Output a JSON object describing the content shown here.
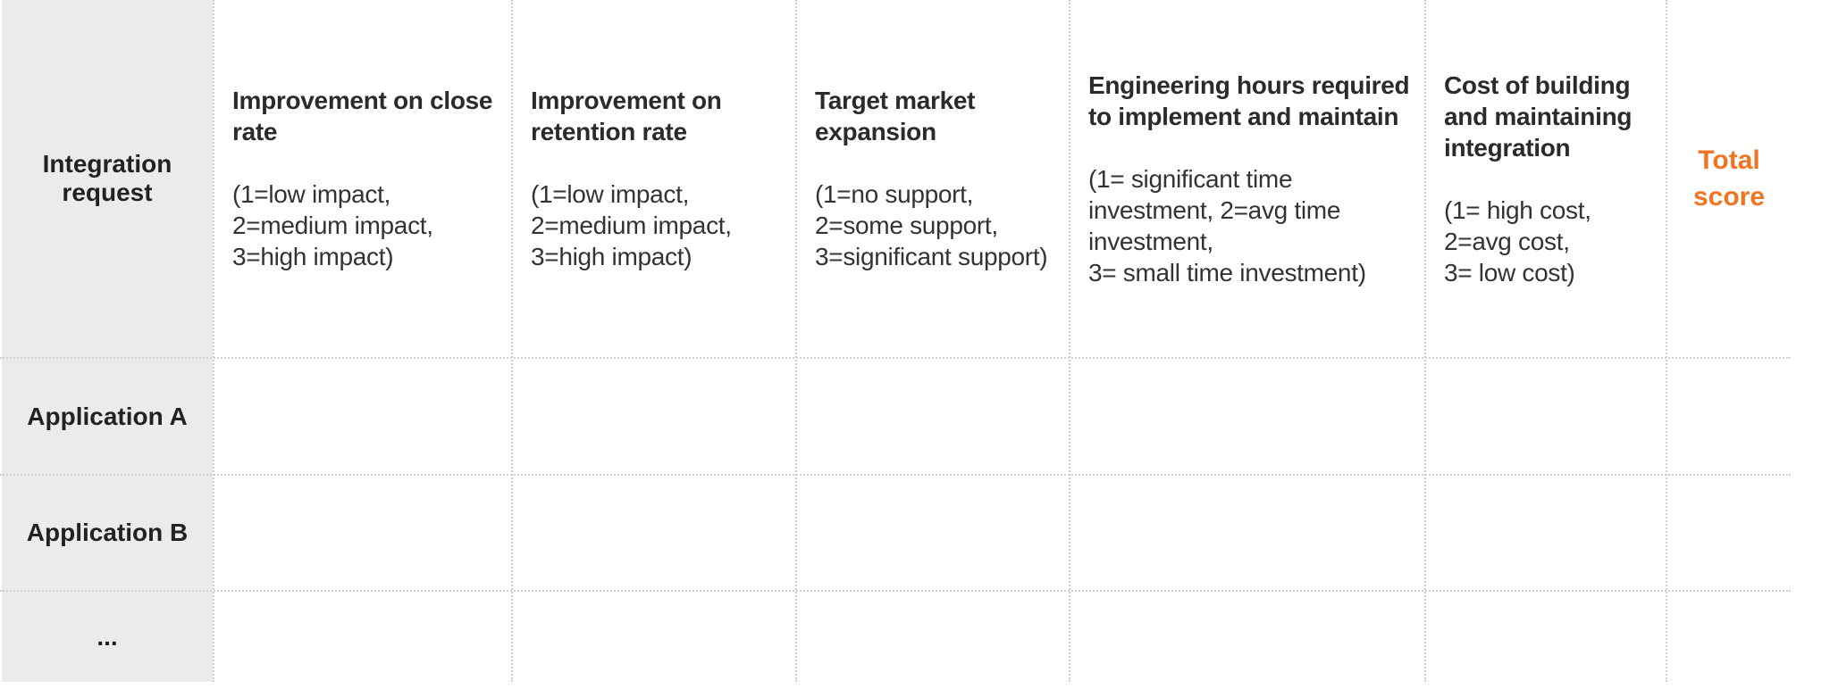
{
  "table": {
    "corner_label": "Integration request",
    "columns": [
      {
        "title": "Improvement on close rate",
        "scale": "(1=low impact,\n2=medium impact,\n3=high impact)"
      },
      {
        "title": "Improvement on retention rate",
        "scale": "(1=low impact,\n2=medium impact,\n3=high impact)"
      },
      {
        "title": "Target market expansion",
        "scale": "(1=no support,\n2=some support,\n3=significant support)"
      },
      {
        "title": "Engineering hours required to implement and maintain",
        "scale": "(1= significant time investment, 2=avg time investment,\n3= small time investment)"
      },
      {
        "title": "Cost of building and maintaining integration",
        "scale": "(1= high cost,\n2=avg cost,\n3= low cost)"
      }
    ],
    "total_label": "Total score",
    "rows": [
      {
        "label": "Application A"
      },
      {
        "label": "Application B"
      },
      {
        "label": "..."
      }
    ]
  },
  "colors": {
    "row_header_background": "#ebebea",
    "total_accent": "#f07422",
    "text": "#2b2b2b",
    "grid": "#cfcfcf"
  }
}
